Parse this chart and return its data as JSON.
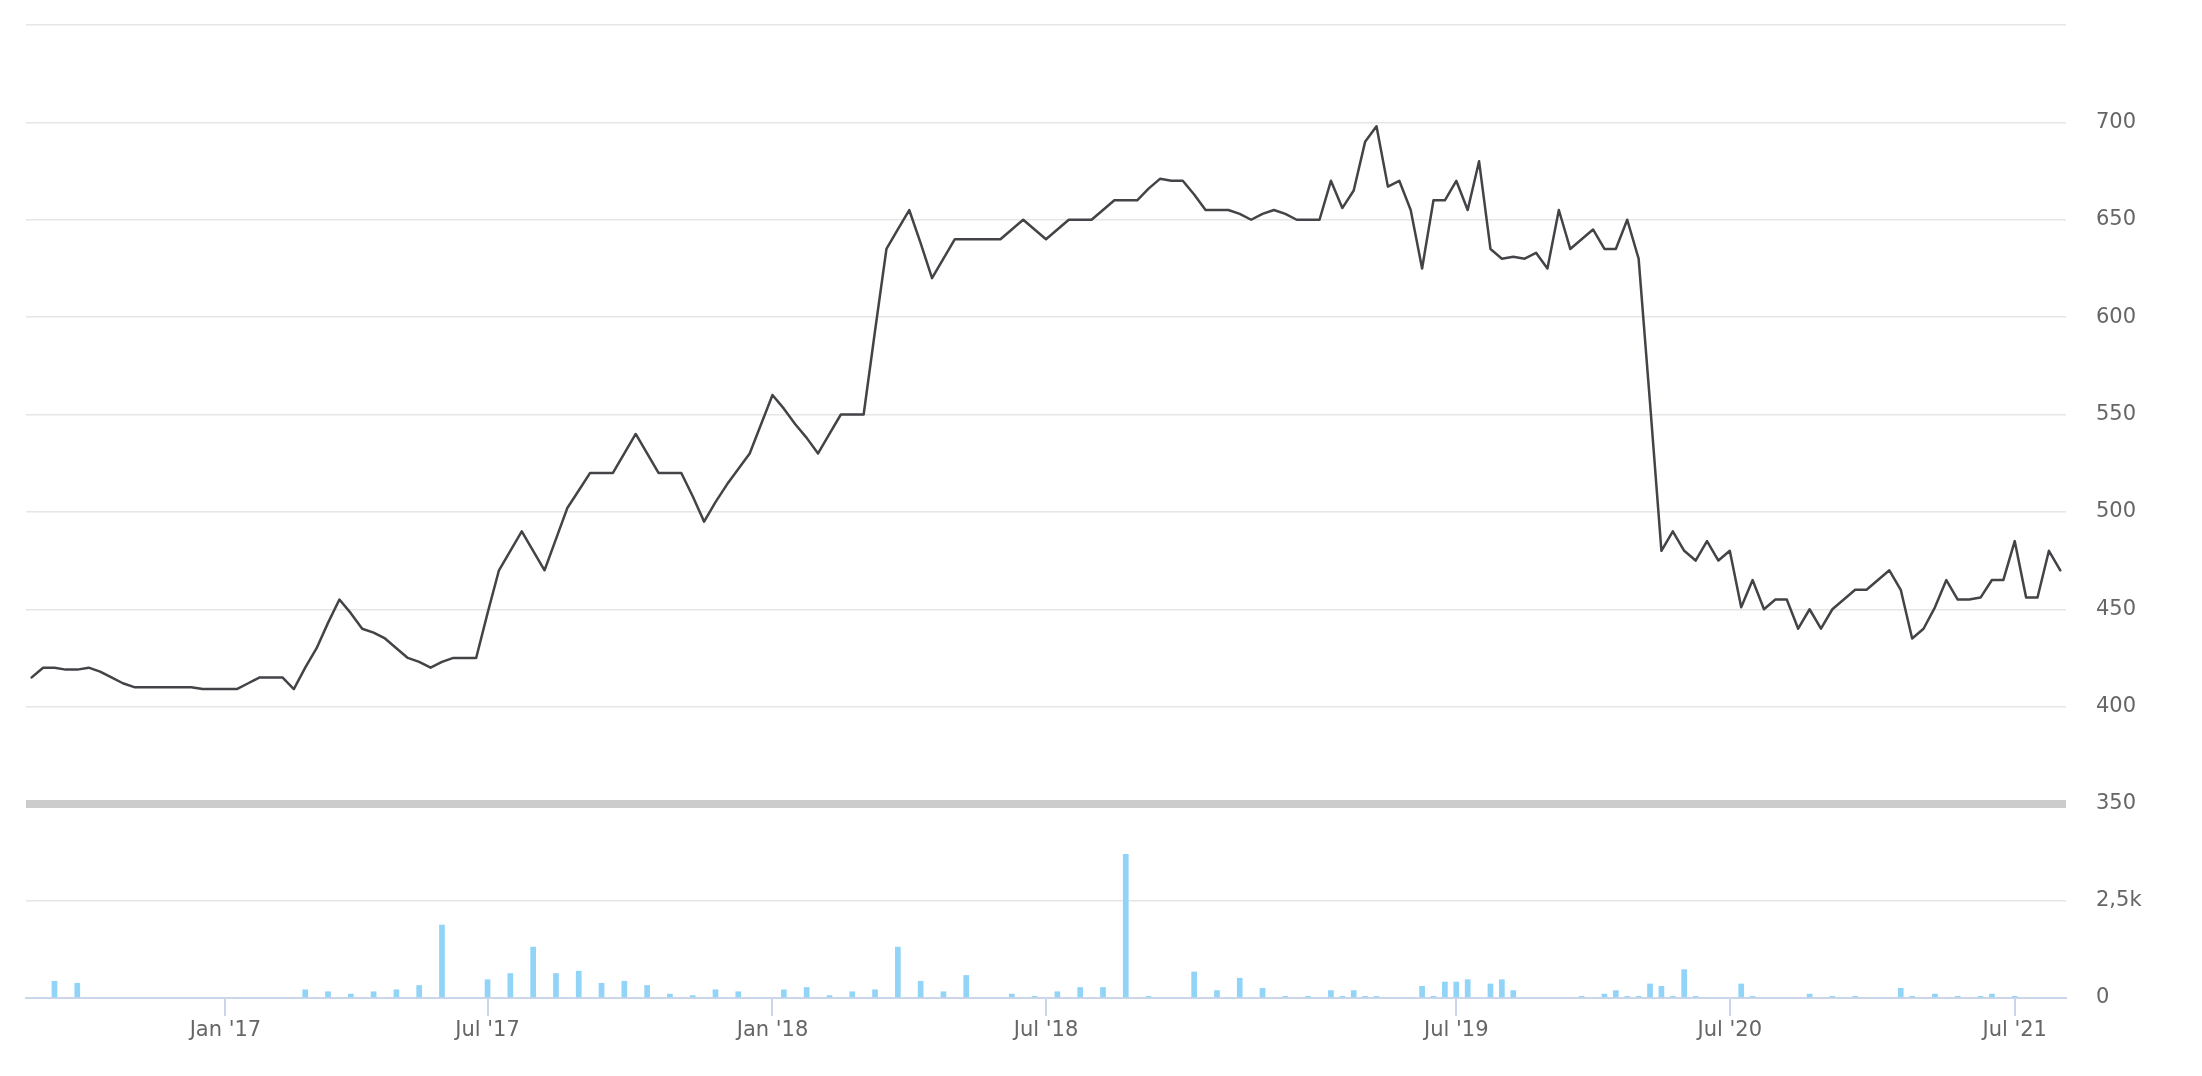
{
  "chart_data": [
    {
      "type": "line",
      "categories": [
        null,
        null,
        null,
        null,
        null,
        null,
        null,
        null,
        null,
        null,
        null,
        null,
        null,
        null,
        null,
        null,
        null,
        null,
        null,
        null,
        null,
        null,
        null,
        null,
        null,
        null,
        null,
        null,
        null,
        null,
        null,
        null,
        null,
        null,
        null,
        null,
        null,
        null,
        null,
        null,
        null,
        null,
        null,
        null,
        null,
        null,
        null,
        null,
        null,
        null,
        null,
        null,
        null,
        null,
        null,
        null,
        null,
        null,
        null,
        null,
        null,
        null,
        null,
        null,
        null,
        null,
        null,
        null,
        null,
        null,
        null,
        null,
        null,
        null,
        null,
        null,
        null,
        null,
        null,
        null,
        null,
        null,
        null,
        null,
        null,
        null,
        null,
        null,
        null,
        null,
        null,
        null,
        null,
        null,
        null,
        null,
        null,
        null,
        null,
        null,
        null,
        null,
        null,
        null,
        null,
        null,
        null,
        null,
        null,
        null,
        null,
        null,
        null,
        null,
        null,
        null,
        null,
        null,
        null,
        null,
        null,
        null,
        null,
        null,
        null,
        null,
        null,
        null,
        null,
        null,
        null,
        null,
        null,
        null,
        null,
        null,
        null,
        null,
        null,
        null,
        null,
        null,
        null,
        null,
        null,
        null,
        null,
        null,
        null,
        null,
        null,
        null,
        null,
        null,
        null,
        null,
        null,
        null,
        null,
        null,
        null,
        null,
        null,
        null,
        null,
        null,
        null,
        null,
        null,
        null,
        null,
        null,
        null,
        null,
        null,
        null,
        null,
        null,
        null
      ],
      "values": [
        415,
        420,
        420,
        419,
        419,
        420,
        418,
        415,
        412,
        410,
        410,
        410,
        410,
        410,
        410,
        409,
        409,
        409,
        409,
        412,
        415,
        415,
        415,
        409,
        420,
        430,
        443,
        455,
        448,
        440,
        438,
        435,
        430,
        425,
        423,
        420,
        423,
        425,
        425,
        425,
        448,
        470,
        480,
        490,
        480,
        470,
        486,
        502,
        511,
        520,
        520,
        520,
        530,
        540,
        530,
        520,
        520,
        520,
        508,
        495,
        505,
        514,
        522,
        530,
        545,
        560,
        553,
        545,
        538,
        530,
        540,
        550,
        550,
        550,
        593,
        635,
        645,
        655,
        638,
        620,
        630,
        640,
        640,
        640,
        640,
        640,
        645,
        650,
        645,
        640,
        645,
        650,
        650,
        650,
        655,
        660,
        660,
        660,
        666,
        671,
        670,
        670,
        663,
        655,
        655,
        655,
        653,
        650,
        653,
        655,
        653,
        650,
        650,
        650,
        670,
        656,
        665,
        690,
        698,
        667,
        670,
        655,
        625,
        660,
        660,
        670,
        655,
        680,
        635,
        630,
        631,
        630,
        633,
        625,
        655,
        635,
        640,
        645,
        635,
        635,
        650,
        630,
        556,
        480,
        490,
        480,
        475,
        485,
        475,
        480,
        451,
        465,
        450,
        455,
        455,
        440,
        450,
        440,
        450,
        455,
        460,
        460,
        465,
        470,
        460,
        435,
        440,
        451,
        465,
        455,
        455,
        456,
        465,
        465,
        485,
        456,
        456,
        480,
        470
      ],
      "color": "#434348",
      "ylim": [
        350,
        750
      ],
      "yticks": [
        350,
        400,
        450,
        500,
        550,
        600,
        650,
        700,
        {
          "value": 750,
          "label": null
        }
      ],
      "grid": "y",
      "tick_labels": "y"
    },
    {
      "type": "bar",
      "categories": [
        null,
        null,
        null,
        null,
        null,
        null,
        null,
        null,
        null,
        null,
        null,
        null,
        null,
        null,
        null,
        null,
        null,
        "Jan '17",
        null,
        null,
        null,
        null,
        null,
        null,
        null,
        null,
        null,
        null,
        null,
        null,
        null,
        null,
        null,
        null,
        null,
        null,
        null,
        null,
        null,
        null,
        "Jul '17",
        null,
        null,
        null,
        null,
        null,
        null,
        null,
        null,
        null,
        null,
        null,
        null,
        null,
        null,
        null,
        null,
        null,
        null,
        null,
        null,
        null,
        null,
        null,
        null,
        "Jan '18",
        null,
        null,
        null,
        null,
        null,
        null,
        null,
        null,
        null,
        null,
        null,
        null,
        null,
        null,
        null,
        null,
        null,
        null,
        null,
        null,
        null,
        null,
        null,
        "Jul '18",
        null,
        null,
        null,
        null,
        null,
        null,
        null,
        null,
        null,
        null,
        null,
        null,
        null,
        null,
        null,
        null,
        null,
        null,
        null,
        null,
        null,
        null,
        null,
        null,
        null,
        null,
        null,
        null,
        null,
        null,
        null,
        null,
        null,
        null,
        null,
        "Jul '19",
        null,
        null,
        null,
        null,
        null,
        null,
        null,
        null,
        null,
        null,
        null,
        null,
        null,
        null,
        null,
        null,
        null,
        null,
        null,
        null,
        null,
        null,
        null,
        "Jul '20",
        null,
        null,
        null,
        null,
        null,
        null,
        null,
        null,
        null,
        null,
        null,
        null,
        null,
        null,
        null,
        null,
        null,
        null,
        null,
        null,
        null,
        null,
        null,
        null,
        "Jul '21",
        null,
        null,
        null,
        null
      ],
      "values": [
        null,
        null,
        440,
        null,
        390,
        null,
        null,
        null,
        null,
        null,
        null,
        null,
        null,
        null,
        null,
        null,
        null,
        null,
        null,
        null,
        null,
        null,
        null,
        null,
        220,
        null,
        170,
        null,
        110,
        null,
        170,
        null,
        220,
        null,
        330,
        null,
        1890,
        null,
        null,
        null,
        480,
        null,
        640,
        null,
        1320,
        null,
        640,
        null,
        700,
        null,
        390,
        null,
        440,
        null,
        330,
        null,
        110,
        null,
        70,
        null,
        220,
        null,
        170,
        null,
        null,
        null,
        220,
        null,
        280,
        null,
        70,
        null,
        170,
        null,
        220,
        null,
        1320,
        null,
        440,
        null,
        170,
        null,
        590,
        null,
        null,
        null,
        110,
        null,
        50,
        null,
        170,
        null,
        280,
        null,
        280,
        null,
        3710,
        null,
        50,
        null,
        null,
        null,
        680,
        null,
        200,
        null,
        520,
        null,
        260,
        null,
        50,
        null,
        50,
        null,
        200,
        50,
        200,
        50,
        50,
        null,
        null,
        null,
        310,
        50,
        420,
        420,
        480,
        null,
        370,
        480,
        200,
        null,
        null,
        null,
        null,
        null,
        50,
        null,
        110,
        200,
        50,
        50,
        370,
        310,
        50,
        740,
        50,
        null,
        null,
        null,
        370,
        50,
        null,
        null,
        null,
        null,
        110,
        null,
        50,
        null,
        50,
        null,
        null,
        null,
        260,
        50,
        null,
        110,
        null,
        50,
        null,
        50,
        110,
        null,
        50,
        null,
        null,
        null,
        null
      ],
      "color": "#92d4f7",
      "ylim": [
        0,
        5000
      ],
      "yticks": [
        0,
        {
          "value": 2500,
          "label": "2,5k"
        },
        {
          "value": 5000,
          "label": null
        }
      ],
      "grid": "y"
    }
  ]
}
